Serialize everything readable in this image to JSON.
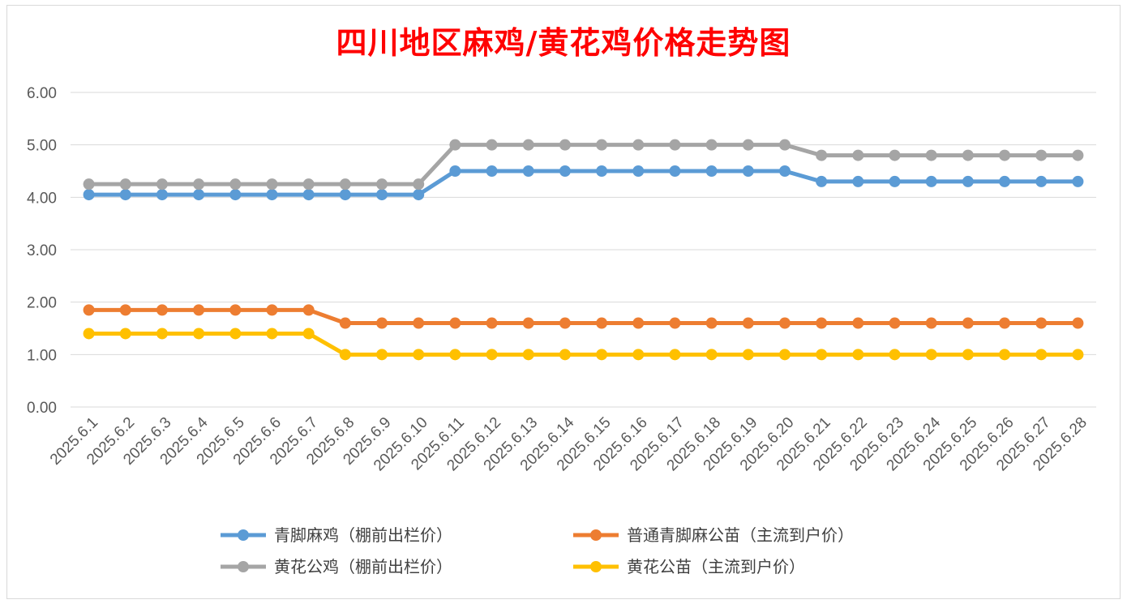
{
  "chart_data": {
    "type": "line",
    "title": "四川地区麻鸡/黄花鸡价格走势图",
    "xlabel": "",
    "ylabel": "",
    "ylim": [
      0,
      6
    ],
    "yticks": [
      "0.00",
      "1.00",
      "2.00",
      "3.00",
      "4.00",
      "5.00",
      "6.00"
    ],
    "grid": true,
    "legend_position": "bottom",
    "categories": [
      "2025.6.1",
      "2025.6.2",
      "2025.6.3",
      "2025.6.4",
      "2025.6.5",
      "2025.6.6",
      "2025.6.7",
      "2025.6.8",
      "2025.6.9",
      "2025.6.10",
      "2025.6.11",
      "2025.6.12",
      "2025.6.13",
      "2025.6.14",
      "2025.6.15",
      "2025.6.16",
      "2025.6.17",
      "2025.6.18",
      "2025.6.19",
      "2025.6.20",
      "2025.6.21",
      "2025.6.22",
      "2025.6.23",
      "2025.6.24",
      "2025.6.25",
      "2025.6.26",
      "2025.6.27",
      "2025.6.28"
    ],
    "series": [
      {
        "name": "青脚麻鸡（棚前出栏价）",
        "color": "#5b9bd5",
        "values": [
          4.05,
          4.05,
          4.05,
          4.05,
          4.05,
          4.05,
          4.05,
          4.05,
          4.05,
          4.05,
          4.5,
          4.5,
          4.5,
          4.5,
          4.5,
          4.5,
          4.5,
          4.5,
          4.5,
          4.5,
          4.3,
          4.3,
          4.3,
          4.3,
          4.3,
          4.3,
          4.3,
          4.3
        ]
      },
      {
        "name": "普通青脚麻公苗（主流到户价）",
        "color": "#ed7d31",
        "values": [
          1.85,
          1.85,
          1.85,
          1.85,
          1.85,
          1.85,
          1.85,
          1.6,
          1.6,
          1.6,
          1.6,
          1.6,
          1.6,
          1.6,
          1.6,
          1.6,
          1.6,
          1.6,
          1.6,
          1.6,
          1.6,
          1.6,
          1.6,
          1.6,
          1.6,
          1.6,
          1.6,
          1.6
        ]
      },
      {
        "name": "黄花公鸡（棚前出栏价）",
        "color": "#a5a5a5",
        "values": [
          4.25,
          4.25,
          4.25,
          4.25,
          4.25,
          4.25,
          4.25,
          4.25,
          4.25,
          4.25,
          5.0,
          5.0,
          5.0,
          5.0,
          5.0,
          5.0,
          5.0,
          5.0,
          5.0,
          5.0,
          4.8,
          4.8,
          4.8,
          4.8,
          4.8,
          4.8,
          4.8,
          4.8
        ]
      },
      {
        "name": "黄花公苗（主流到户价）",
        "color": "#ffc000",
        "values": [
          1.4,
          1.4,
          1.4,
          1.4,
          1.4,
          1.4,
          1.4,
          1.0,
          1.0,
          1.0,
          1.0,
          1.0,
          1.0,
          1.0,
          1.0,
          1.0,
          1.0,
          1.0,
          1.0,
          1.0,
          1.0,
          1.0,
          1.0,
          1.0,
          1.0,
          1.0,
          1.0,
          1.0
        ]
      }
    ],
    "gridline_color": "#d9d9d9"
  }
}
